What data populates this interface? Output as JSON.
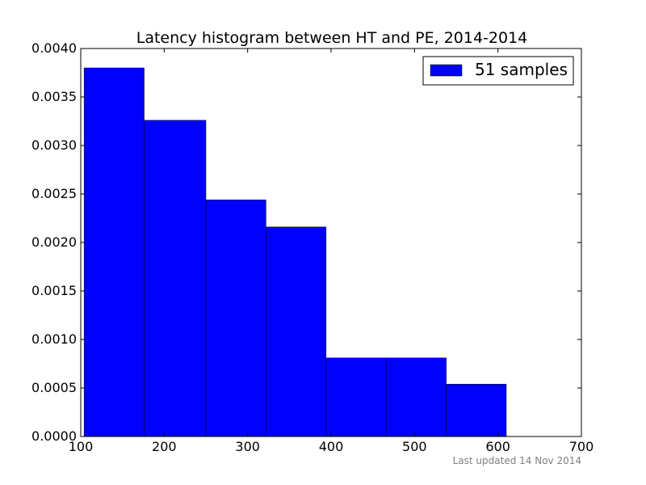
{
  "chart_data": {
    "type": "bar",
    "title": "Latency histogram between HT and PE, 2014-2014",
    "xlabel": "",
    "ylabel": "",
    "xlim": [
      100,
      700
    ],
    "ylim": [
      0,
      0.004
    ],
    "x_ticks": [
      100,
      200,
      300,
      400,
      500,
      600,
      700
    ],
    "x_tick_labels": [
      "100",
      "200",
      "300",
      "400",
      "500",
      "600",
      "700"
    ],
    "y_ticks": [
      0,
      0.0005,
      0.001,
      0.0015,
      0.002,
      0.0025,
      0.003,
      0.0035,
      0.004
    ],
    "y_tick_labels": [
      "0.0000",
      "0.0005",
      "0.0010",
      "0.0015",
      "0.0020",
      "0.0025",
      "0.0030",
      "0.0035",
      "0.0040"
    ],
    "bin_edges": [
      104,
      176,
      250,
      322,
      394,
      466,
      538,
      610
    ],
    "series": [
      {
        "name": "51 samples",
        "values": [
          0.0038,
          0.00326,
          0.00244,
          0.00216,
          0.00081,
          0.00081,
          0.00054
        ],
        "color": "#0000ff"
      }
    ],
    "grid": false,
    "legend_position": "top-right",
    "footer": "Last updated 14 Nov 2014"
  }
}
